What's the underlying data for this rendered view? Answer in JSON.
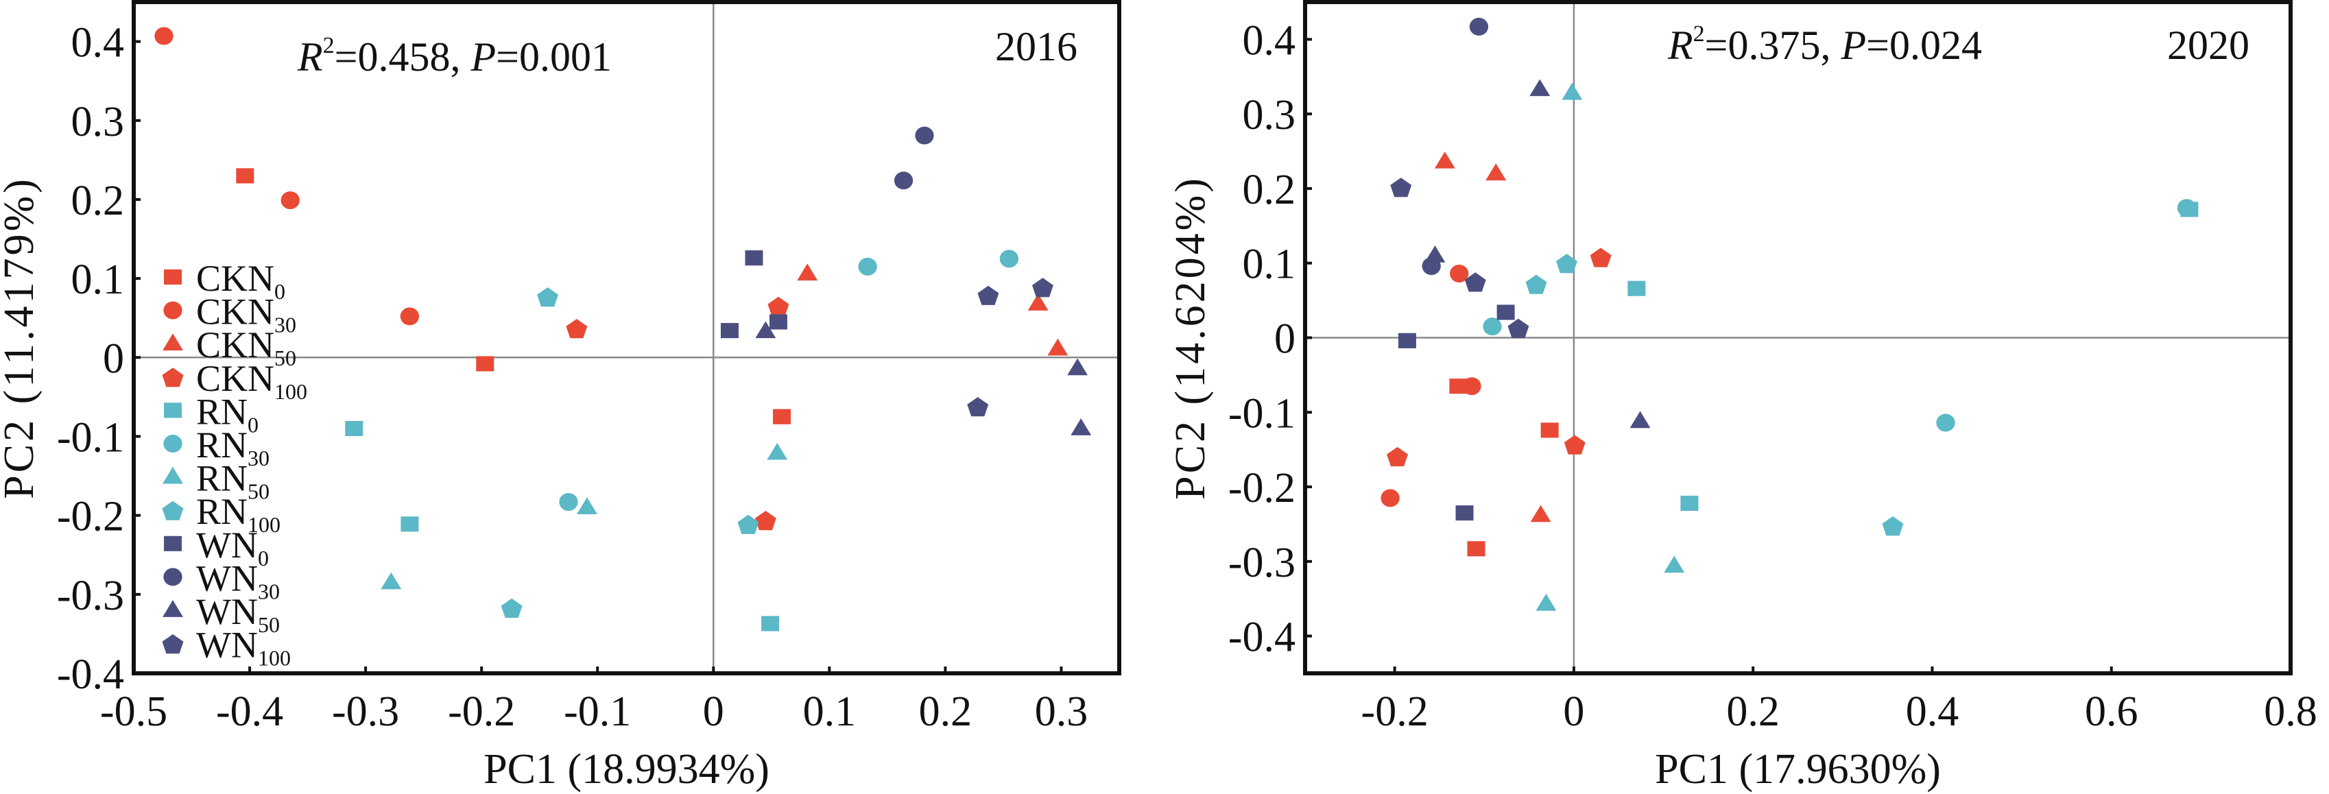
{
  "chart_data": [
    {
      "type": "scatter",
      "panel": "2016",
      "title": "2016",
      "annotation": {
        "r2_label": "R",
        "r2_sup": "2",
        "text": "=0.458, ",
        "p_label": "P",
        "p_text": "=0.001"
      },
      "xlabel": "PC1 (18.9934%)",
      "ylabel": "PC2 (11.4179%)",
      "xlim": [
        -0.5,
        0.35
      ],
      "ylim": [
        -0.4,
        0.45
      ],
      "xticks": [
        "-0.5",
        "-0.4",
        "-0.3",
        "-0.2",
        "-0.1",
        "0",
        "0.1",
        "0.2",
        "0.3"
      ],
      "yticks": [
        "-0.4",
        "-0.3",
        "-0.2",
        "-0.1",
        "0",
        "0.1",
        "0.2",
        "0.3",
        "0.4"
      ],
      "zero_lines": true,
      "legend_position": "left",
      "points": [
        {
          "group": "CKN0",
          "x": -0.404,
          "y": 0.23
        },
        {
          "group": "CKN0",
          "x": -0.197,
          "y": -0.008
        },
        {
          "group": "CKN0",
          "x": 0.059,
          "y": -0.075
        },
        {
          "group": "CKN30",
          "x": -0.474,
          "y": 0.407
        },
        {
          "group": "CKN30",
          "x": -0.365,
          "y": 0.199
        },
        {
          "group": "CKN30",
          "x": -0.262,
          "y": 0.052
        },
        {
          "group": "CKN50",
          "x": 0.081,
          "y": 0.106
        },
        {
          "group": "CKN50",
          "x": 0.28,
          "y": 0.068
        },
        {
          "group": "CKN50",
          "x": 0.297,
          "y": 0.011
        },
        {
          "group": "CKN100",
          "x": -0.118,
          "y": 0.037
        },
        {
          "group": "CKN100",
          "x": 0.056,
          "y": 0.065
        },
        {
          "group": "CKN100",
          "x": 0.045,
          "y": -0.206
        },
        {
          "group": "RN0",
          "x": -0.31,
          "y": -0.09
        },
        {
          "group": "RN0",
          "x": -0.262,
          "y": -0.211
        },
        {
          "group": "RN0",
          "x": 0.049,
          "y": -0.337
        },
        {
          "group": "RN30",
          "x": -0.125,
          "y": -0.183
        },
        {
          "group": "RN30",
          "x": 0.133,
          "y": 0.115
        },
        {
          "group": "RN30",
          "x": 0.255,
          "y": 0.125
        },
        {
          "group": "RN50",
          "x": -0.278,
          "y": -0.285
        },
        {
          "group": "RN50",
          "x": -0.109,
          "y": -0.19
        },
        {
          "group": "RN50",
          "x": 0.055,
          "y": -0.121
        },
        {
          "group": "RN100",
          "x": -0.143,
          "y": 0.077
        },
        {
          "group": "RN100",
          "x": -0.174,
          "y": -0.317
        },
        {
          "group": "RN100",
          "x": 0.03,
          "y": -0.211
        },
        {
          "group": "WN0",
          "x": 0.035,
          "y": 0.126
        },
        {
          "group": "WN0",
          "x": 0.056,
          "y": 0.045
        },
        {
          "group": "WN0",
          "x": 0.014,
          "y": 0.034
        },
        {
          "group": "WN30",
          "x": 0.164,
          "y": 0.224
        },
        {
          "group": "WN30",
          "x": 0.182,
          "y": 0.281
        },
        {
          "group": "WN50",
          "x": 0.045,
          "y": 0.033
        },
        {
          "group": "WN50",
          "x": 0.314,
          "y": -0.014
        },
        {
          "group": "WN50",
          "x": 0.317,
          "y": -0.09
        },
        {
          "group": "WN100",
          "x": 0.237,
          "y": 0.079
        },
        {
          "group": "WN100",
          "x": 0.284,
          "y": 0.089
        },
        {
          "group": "WN100",
          "x": 0.228,
          "y": -0.062
        }
      ]
    },
    {
      "type": "scatter",
      "panel": "2020",
      "title": "2020",
      "annotation": {
        "r2_label": "R",
        "r2_sup": "2",
        "text": "=0.375, ",
        "p_label": "P",
        "p_text": "=0.024"
      },
      "xlabel": "PC1 (17.9630%)",
      "ylabel": "PC2 (14.6204%)",
      "xlim": [
        -0.3,
        0.8
      ],
      "ylim": [
        -0.45,
        0.45
      ],
      "xticks": [
        "-0.2",
        "0",
        "0.2",
        "0.4",
        "0.6",
        "0.8"
      ],
      "yticks": [
        "-0.4",
        "-0.3",
        "-0.2",
        "-0.1",
        "0",
        "0.1",
        "0.2",
        "0.3",
        "0.4"
      ],
      "zero_lines": true,
      "points": [
        {
          "group": "CKN0",
          "x": -0.129,
          "y": -0.065
        },
        {
          "group": "CKN0",
          "x": -0.027,
          "y": -0.124
        },
        {
          "group": "CKN0",
          "x": -0.109,
          "y": -0.283
        },
        {
          "group": "CKN30",
          "x": -0.128,
          "y": 0.086
        },
        {
          "group": "CKN30",
          "x": -0.114,
          "y": -0.065
        },
        {
          "group": "CKN30",
          "x": -0.205,
          "y": -0.215
        },
        {
          "group": "CKN50",
          "x": -0.144,
          "y": 0.236
        },
        {
          "group": "CKN50",
          "x": -0.087,
          "y": 0.22
        },
        {
          "group": "CKN50",
          "x": -0.037,
          "y": -0.238
        },
        {
          "group": "CKN100",
          "x": 0.03,
          "y": 0.108
        },
        {
          "group": "CKN100",
          "x": 0.001,
          "y": -0.143
        },
        {
          "group": "CKN100",
          "x": -0.197,
          "y": -0.159
        },
        {
          "group": "RN0",
          "x": 0.07,
          "y": 0.066
        },
        {
          "group": "RN0",
          "x": 0.129,
          "y": -0.222
        },
        {
          "group": "RN0",
          "x": 0.687,
          "y": 0.172
        },
        {
          "group": "RN30",
          "x": -0.091,
          "y": 0.015
        },
        {
          "group": "RN30",
          "x": 0.415,
          "y": -0.114
        },
        {
          "group": "RN30",
          "x": 0.684,
          "y": 0.174
        },
        {
          "group": "RN50",
          "x": -0.002,
          "y": 0.328
        },
        {
          "group": "RN50",
          "x": -0.031,
          "y": -0.357
        },
        {
          "group": "RN50",
          "x": 0.112,
          "y": -0.306
        },
        {
          "group": "RN100",
          "x": -0.042,
          "y": 0.072
        },
        {
          "group": "RN100",
          "x": -0.008,
          "y": 0.1
        },
        {
          "group": "RN100",
          "x": 0.356,
          "y": -0.252
        },
        {
          "group": "WN0",
          "x": -0.076,
          "y": 0.034
        },
        {
          "group": "WN0",
          "x": -0.186,
          "y": -0.004
        },
        {
          "group": "WN0",
          "x": -0.122,
          "y": -0.235
        },
        {
          "group": "WN30",
          "x": -0.106,
          "y": 0.417
        },
        {
          "group": "WN30",
          "x": -0.159,
          "y": 0.096
        },
        {
          "group": "WN50",
          "x": -0.038,
          "y": 0.333
        },
        {
          "group": "WN50",
          "x": -0.155,
          "y": 0.11
        },
        {
          "group": "WN50",
          "x": 0.074,
          "y": -0.112
        },
        {
          "group": "WN100",
          "x": -0.193,
          "y": 0.202
        },
        {
          "group": "WN100",
          "x": -0.11,
          "y": 0.075
        },
        {
          "group": "WN100",
          "x": -0.062,
          "y": 0.013
        }
      ]
    }
  ],
  "legend": [
    {
      "group": "CKN0",
      "base": "CKN",
      "sub": "0",
      "shape": "square",
      "color_key": "CK"
    },
    {
      "group": "CKN30",
      "base": "CKN",
      "sub": "30",
      "shape": "circle",
      "color_key": "CK"
    },
    {
      "group": "CKN50",
      "base": "CKN",
      "sub": "50",
      "shape": "triangle",
      "color_key": "CK"
    },
    {
      "group": "CKN100",
      "base": "CKN",
      "sub": "100",
      "shape": "pentagon",
      "color_key": "CK"
    },
    {
      "group": "RN0",
      "base": "RN",
      "sub": "0",
      "shape": "square",
      "color_key": "R"
    },
    {
      "group": "RN30",
      "base": "RN",
      "sub": "30",
      "shape": "circle",
      "color_key": "R"
    },
    {
      "group": "RN50",
      "base": "RN",
      "sub": "50",
      "shape": "triangle",
      "color_key": "R"
    },
    {
      "group": "RN100",
      "base": "RN",
      "sub": "100",
      "shape": "pentagon",
      "color_key": "R"
    },
    {
      "group": "WN0",
      "base": "WN",
      "sub": "0",
      "shape": "square",
      "color_key": "W"
    },
    {
      "group": "WN30",
      "base": "WN",
      "sub": "30",
      "shape": "circle",
      "color_key": "W"
    },
    {
      "group": "WN50",
      "base": "WN",
      "sub": "50",
      "shape": "triangle",
      "color_key": "W"
    },
    {
      "group": "WN100",
      "base": "WN",
      "sub": "100",
      "shape": "pentagon",
      "color_key": "W"
    }
  ],
  "colors": {
    "CK": "#E84A35",
    "R": "#5BB8C6",
    "W": "#4B4F80",
    "axis": "#111111",
    "zero_line": "#8a8a8a"
  }
}
